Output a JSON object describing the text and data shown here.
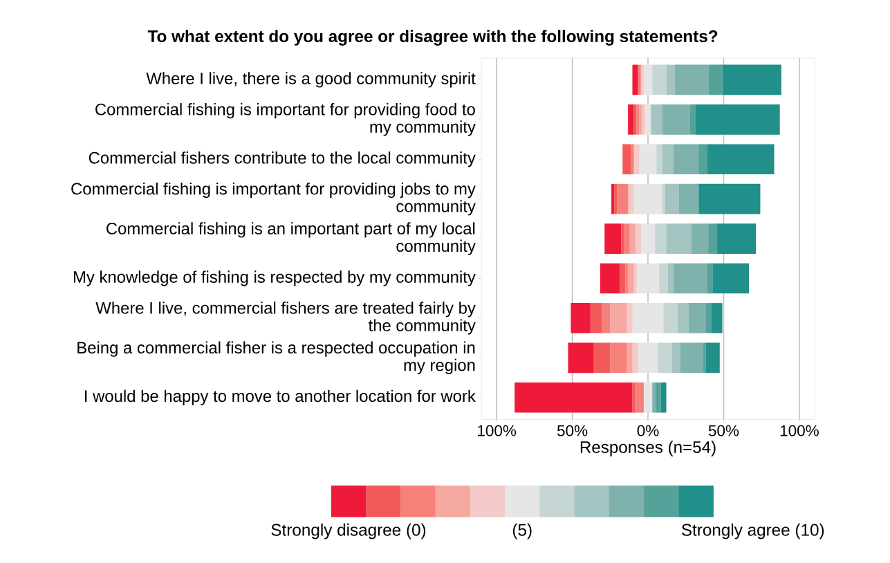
{
  "chart_data": {
    "type": "bar",
    "orientation": "horizontal",
    "stacked": true,
    "title": "To what extent do you agree or disagree with the following statements?",
    "xlabel": "Responses (n=54)",
    "categories": [
      "Where I live, there is a good community spirit",
      "Commercial fishing is important for providing food to my community",
      "Commercial fishers contribute to the local community",
      "Commercial fishing is important for providing jobs to my community",
      "Commercial fishing is an important part of my local community",
      "My knowledge of fishing is respected by my community",
      "Where I live, commercial fishers are treated fairly by the community",
      "Being a commercial fisher is a respected occupation in my region",
      "I would be happy to move to another location for work"
    ],
    "series": [
      {
        "color": "#e6e6e6",
        "values": [
          -2.8,
          -1.9,
          -5.6,
          -9.3,
          -4.6,
          -7.4,
          -10.2,
          -6.5,
          -2.8
        ]
      },
      {
        "color": "#f3cac8",
        "values": [
          -1.9,
          -1.9,
          -3.7,
          -3.7,
          -3.7,
          -1.9,
          -3.7,
          -3.7,
          0
        ]
      },
      {
        "color": "#f5a8a0",
        "values": [
          0,
          -1.9,
          0,
          0,
          -3.7,
          -3.7,
          -11.1,
          -3.7,
          0
        ]
      },
      {
        "color": "#f6807a",
        "values": [
          -1.9,
          -1.9,
          -1.9,
          -7.4,
          -3.7,
          -1.9,
          -5.6,
          -11.1,
          -5.6
        ]
      },
      {
        "color": "#f25a5a",
        "values": [
          0,
          -1.9,
          -5.6,
          -1.9,
          -1.9,
          -3.7,
          -7.4,
          -11.1,
          -1.9
        ]
      },
      {
        "name": "Strongly disagree (0)",
        "color": "#ef1a3a",
        "values": [
          -3.7,
          -3.7,
          0,
          -1.9,
          -11.1,
          -13.0,
          -13.0,
          -16.7,
          -77.8
        ]
      },
      {
        "name": "(5)",
        "color": "#e6e6e6",
        "values": [
          2.8,
          1.9,
          5.6,
          9.3,
          4.6,
          7.4,
          10.2,
          6.5,
          2.8
        ]
      },
      {
        "color": "#c6d6d5",
        "values": [
          9.3,
          0,
          3.7,
          1.9,
          7.4,
          5.6,
          9.3,
          9.3,
          0
        ]
      },
      {
        "color": "#a3c4c1",
        "values": [
          5.6,
          7.4,
          7.4,
          9.3,
          16.7,
          3.7,
          7.4,
          5.6,
          0
        ]
      },
      {
        "color": "#7fb2ac",
        "values": [
          22.2,
          18.5,
          16.7,
          13.0,
          11.1,
          22.2,
          11.1,
          14.8,
          1.9
        ]
      },
      {
        "color": "#57a19b",
        "values": [
          9.3,
          3.7,
          5.6,
          0,
          5.6,
          3.7,
          3.7,
          1.9,
          3.7
        ]
      },
      {
        "name": "Strongly agree (10)",
        "color": "#218f8a",
        "values": [
          38.9,
          55.6,
          44.4,
          40.7,
          25.9,
          24.1,
          7.4,
          9.3,
          3.7
        ]
      }
    ],
    "xlim": [
      -110,
      110
    ],
    "xticks": [
      {
        "value": -100,
        "label": "100%"
      },
      {
        "value": -50,
        "label": "50%"
      },
      {
        "value": 0,
        "label": "0%"
      },
      {
        "value": 50,
        "label": "50%"
      },
      {
        "value": 100,
        "label": "100%"
      }
    ],
    "grid": "x",
    "legend": "bottom"
  }
}
